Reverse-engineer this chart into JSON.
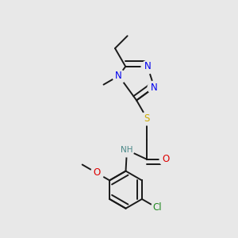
{
  "background_color": "#e8e8e8",
  "bond_color": "#1a1a1a",
  "bond_width": 1.4,
  "dbo": 0.013,
  "figsize": [
    3.0,
    3.0
  ],
  "dpi": 100,
  "colors": {
    "N": "#0000ee",
    "S": "#ccaa00",
    "O": "#dd0000",
    "N_amide": "#4a8888",
    "Cl": "#228822",
    "C": "#1a1a1a"
  }
}
